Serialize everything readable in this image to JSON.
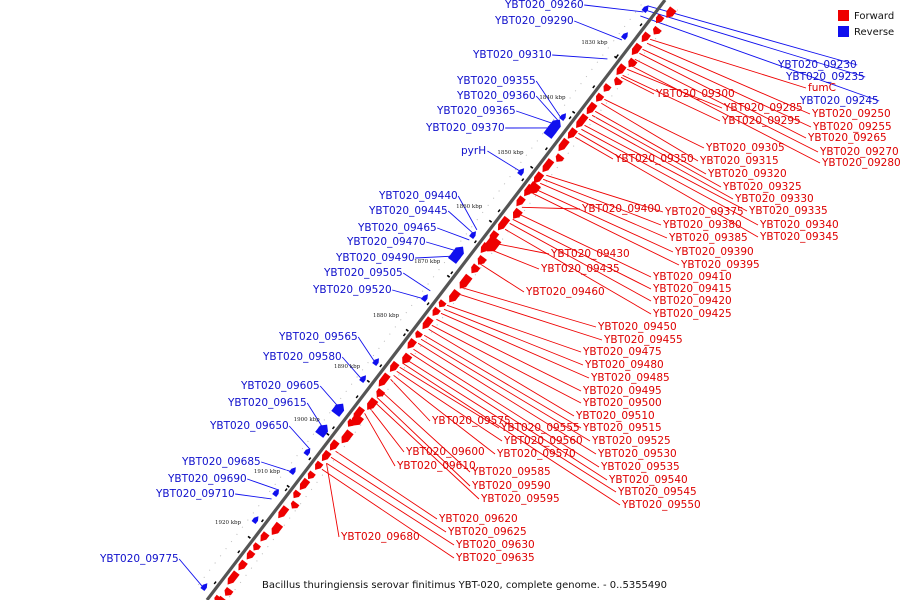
{
  "caption": "Bacillus thuringiensis serovar finitimus YBT-020, complete genome. - 0..5355490",
  "legend": [
    {
      "label": "Forward",
      "color": "#ee0000"
    },
    {
      "label": "Reverse",
      "color": "#1010ee"
    }
  ],
  "colors": {
    "forward": "#ee0000",
    "reverse": "#1010ee",
    "backbone": "#555555"
  },
  "ticks": [
    "1830 kbp",
    "1840 kbp",
    "1850 kbp",
    "1860 kbp",
    "1870 kbp",
    "1880 kbp",
    "1890 kbp",
    "1900 kbp",
    "1910 kbp",
    "1920 kbp"
  ],
  "reverse_labels": [
    "YBT020_09260",
    "YBT020_09290",
    "YBT020_09310",
    "YBT020_09355",
    "YBT020_09360",
    "YBT020_09365",
    "YBT020_09370",
    "pyrH",
    "YBT020_09440",
    "YBT020_09445",
    "YBT020_09465",
    "YBT020_09470",
    "YBT020_09490",
    "YBT020_09505",
    "YBT020_09520",
    "YBT020_09565",
    "YBT020_09580",
    "YBT020_09605",
    "YBT020_09615",
    "YBT020_09650",
    "YBT020_09685",
    "YBT020_09690",
    "YBT020_09710",
    "YBT020_09775",
    "YBT020_09230",
    "YBT020_09235",
    "YBT020_09245"
  ],
  "forward_labels": [
    "fumC",
    "YBT020_09250",
    "YBT020_09255",
    "YBT020_09265",
    "YBT020_09270",
    "YBT020_09280",
    "YBT020_09285",
    "YBT020_09295",
    "YBT020_09300",
    "YBT020_09305",
    "YBT020_09315",
    "YBT020_09320",
    "YBT020_09325",
    "YBT020_09330",
    "YBT020_09335",
    "YBT020_09340",
    "YBT020_09345",
    "YBT020_09350",
    "YBT020_09375",
    "YBT020_09380",
    "YBT020_09385",
    "YBT020_09390",
    "YBT020_09395",
    "YBT020_09400",
    "YBT020_09410",
    "YBT020_09415",
    "YBT020_09420",
    "YBT020_09425",
    "YBT020_09430",
    "YBT020_09435",
    "YBT020_09460",
    "YBT020_09450",
    "YBT020_09455",
    "YBT020_09475",
    "YBT020_09480",
    "YBT020_09485",
    "YBT020_09495",
    "YBT020_09500",
    "YBT020_09510",
    "YBT020_09515",
    "YBT020_09525",
    "YBT020_09530",
    "YBT020_09535",
    "YBT020_09540",
    "YBT020_09545",
    "YBT020_09550",
    "YBT020_09555",
    "YBT020_09560",
    "YBT020_09570",
    "YBT020_09575",
    "YBT020_09585",
    "YBT020_09590",
    "YBT020_09595",
    "YBT020_09600",
    "YBT020_09610",
    "YBT020_09620",
    "YBT020_09625",
    "YBT020_09630",
    "YBT020_09635",
    "YBT020_09680"
  ]
}
